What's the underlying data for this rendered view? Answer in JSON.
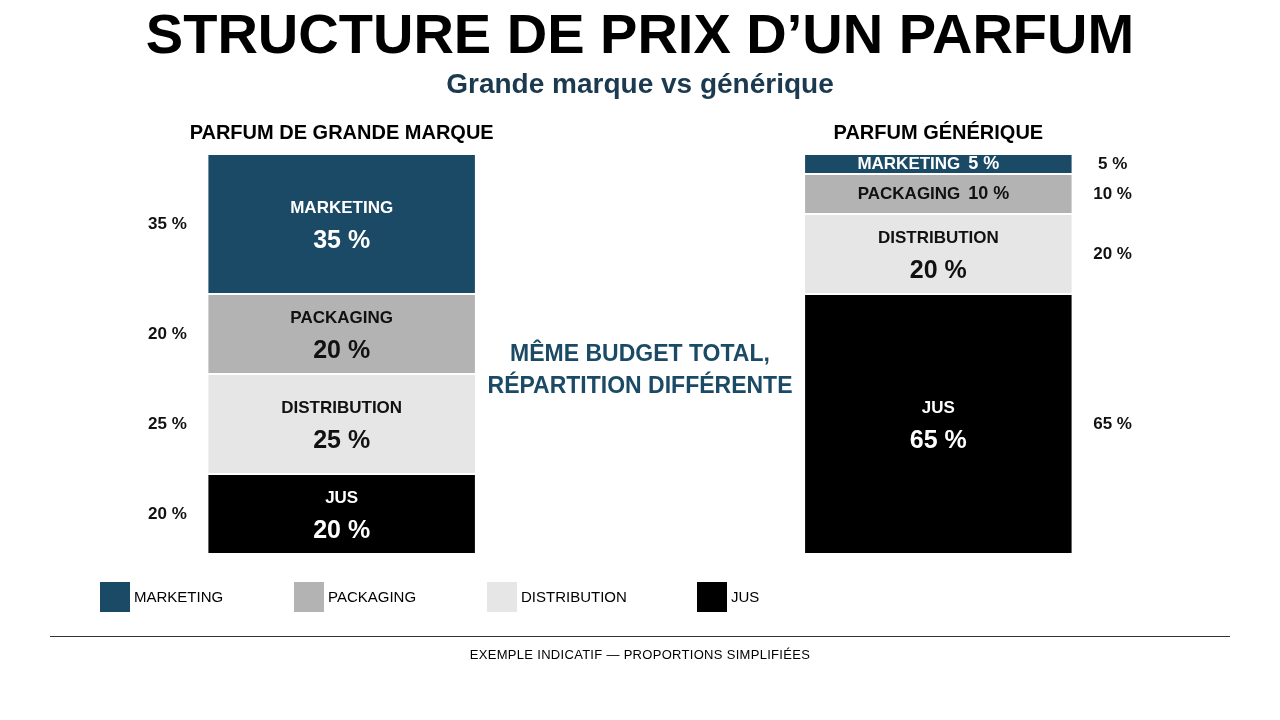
{
  "chart_data": {
    "type": "bar",
    "stacked": true,
    "title": "STRUCTURE DE PRIX D’UN PARFUM",
    "subtitle": "Grande marque vs générique",
    "categories": [
      "PARFUM DE GRANDE MARQUE",
      "PARFUM GÉNÉRIQUE"
    ],
    "series": [
      {
        "name": "JUS",
        "color": "#000000",
        "values": [
          20,
          65
        ],
        "value_labels": [
          "20 %",
          "65 %"
        ]
      },
      {
        "name": "DISTRIBUTION",
        "color": "#e6e6e6",
        "values": [
          25,
          20
        ],
        "value_labels": [
          "25 %",
          "20 %"
        ]
      },
      {
        "name": "PACKAGING",
        "color": "#b3b3b3",
        "values": [
          20,
          10
        ],
        "value_labels": [
          "20 %",
          "10 %"
        ]
      },
      {
        "name": "MARKETING",
        "color": "#1b4a66",
        "values": [
          35,
          5
        ],
        "value_labels": [
          "35 %",
          "5 %"
        ]
      }
    ],
    "legend": "bottom",
    "annotations": [
      "MÊME BUDGET TOTAL,\nRÉPARTITION DIFFÉRENTE",
      "EXEMPLE INDICATIF — PROPORTIONS SIMPLIFIÉES"
    ]
  }
}
